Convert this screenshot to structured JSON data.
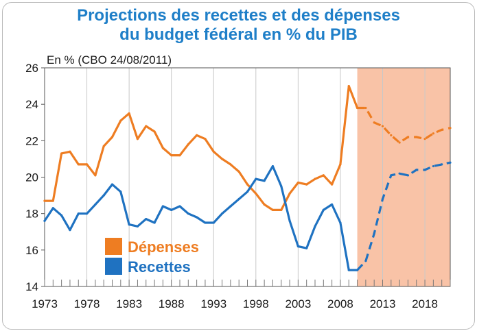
{
  "chart_data": {
    "type": "line",
    "title_line1": "Projections des recettes et des dépenses",
    "title_line2": "du budget fédéral en % du PIB",
    "ylabel": "En %  (CBO 24/08/2011)",
    "xlabel": "",
    "ylim": [
      14,
      26
    ],
    "xlim": [
      1973,
      2021
    ],
    "yticks": [
      14,
      16,
      18,
      20,
      22,
      24,
      26
    ],
    "xticks": [
      1973,
      1978,
      1983,
      1988,
      1993,
      1998,
      2003,
      2008,
      2013,
      2018
    ],
    "projection_start": 2010,
    "projection_color": "#f9c3a7",
    "series": [
      {
        "name": "Dépenses",
        "color": "#ee7d22",
        "x": [
          1973,
          1974,
          1975,
          1976,
          1977,
          1978,
          1979,
          1980,
          1981,
          1982,
          1983,
          1984,
          1985,
          1986,
          1987,
          1988,
          1989,
          1990,
          1991,
          1992,
          1993,
          1994,
          1995,
          1996,
          1997,
          1998,
          1999,
          2000,
          2001,
          2002,
          2003,
          2004,
          2005,
          2006,
          2007,
          2008,
          2009,
          2010,
          2011,
          2012,
          2013,
          2014,
          2015,
          2016,
          2017,
          2018,
          2019,
          2020,
          2021
        ],
        "values": [
          18.7,
          18.7,
          21.3,
          21.4,
          20.7,
          20.7,
          20.1,
          21.7,
          22.2,
          23.1,
          23.5,
          22.1,
          22.8,
          22.5,
          21.6,
          21.2,
          21.2,
          21.8,
          22.3,
          22.1,
          21.4,
          21.0,
          20.7,
          20.3,
          19.6,
          19.1,
          18.5,
          18.2,
          18.2,
          19.1,
          19.7,
          19.6,
          19.9,
          20.1,
          19.6,
          20.7,
          25.0,
          23.8,
          23.8,
          23.0,
          22.8,
          22.3,
          21.9,
          22.2,
          22.2,
          22.1,
          22.4,
          22.6,
          22.7
        ],
        "projection_from_index": 37
      },
      {
        "name": "Recettes",
        "color": "#1f72c1",
        "x": [
          1973,
          1974,
          1975,
          1976,
          1977,
          1978,
          1979,
          1980,
          1981,
          1982,
          1983,
          1984,
          1985,
          1986,
          1987,
          1988,
          1989,
          1990,
          1991,
          1992,
          1993,
          1994,
          1995,
          1996,
          1997,
          1998,
          1999,
          2000,
          2001,
          2002,
          2003,
          2004,
          2005,
          2006,
          2007,
          2008,
          2009,
          2010,
          2011,
          2012,
          2013,
          2014,
          2015,
          2016,
          2017,
          2018,
          2019,
          2020,
          2021
        ],
        "values": [
          17.6,
          18.3,
          17.9,
          17.1,
          18.0,
          18.0,
          18.5,
          19.0,
          19.6,
          19.2,
          17.4,
          17.3,
          17.7,
          17.5,
          18.4,
          18.2,
          18.4,
          18.0,
          17.8,
          17.5,
          17.5,
          18.0,
          18.4,
          18.8,
          19.2,
          19.9,
          19.8,
          20.6,
          19.5,
          17.6,
          16.2,
          16.1,
          17.3,
          18.2,
          18.5,
          17.5,
          14.9,
          14.9,
          15.4,
          16.9,
          18.8,
          20.1,
          20.2,
          20.1,
          20.4,
          20.4,
          20.6,
          20.7,
          20.8
        ],
        "projection_from_index": 37
      }
    ],
    "legend": {
      "position": "bottom-left"
    }
  }
}
